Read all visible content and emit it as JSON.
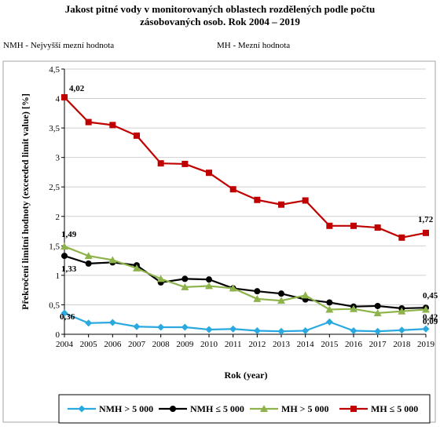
{
  "header": {
    "title_line1": "Jakost pitné vody v monitorovaných oblastech rozdělených podle počtu",
    "title_line2": "zásobovaných osob. Rok 2004 – 2019",
    "note_left": "NMH - Nejvyšší mezní hodnota",
    "note_right": "MH - Mezní hodnota"
  },
  "chart_data": {
    "type": "line",
    "xlabel": "Rok (year)",
    "ylabel": "Překročení limitní hodnoty (exceeded limit value) [%]",
    "x": [
      2004,
      2005,
      2006,
      2007,
      2008,
      2009,
      2010,
      2011,
      2012,
      2013,
      2014,
      2015,
      2016,
      2017,
      2018,
      2019
    ],
    "ylim": [
      0,
      4.5
    ],
    "yticks": [
      "0",
      "0,5",
      "1",
      "1,5",
      "2",
      "2,5",
      "3",
      "3,5",
      "4",
      "4,5"
    ],
    "grid": "horizontal",
    "legend_position": "bottom",
    "series": [
      {
        "name": "NMH > 5 000",
        "color": "#2aa9e0",
        "marker": "diamond",
        "values": [
          0.36,
          0.19,
          0.2,
          0.13,
          0.12,
          0.12,
          0.08,
          0.09,
          0.06,
          0.05,
          0.06,
          0.21,
          0.06,
          0.05,
          0.07,
          0.09
        ]
      },
      {
        "name": "NMH ≤ 5 000",
        "color": "#000000",
        "marker": "circle",
        "values": [
          1.33,
          1.2,
          1.22,
          1.17,
          0.88,
          0.94,
          0.93,
          0.78,
          0.73,
          0.69,
          0.59,
          0.54,
          0.47,
          0.48,
          0.44,
          0.45
        ]
      },
      {
        "name": "MH > 5 000",
        "color": "#8db34a",
        "marker": "triangle",
        "values": [
          1.49,
          1.33,
          1.26,
          1.12,
          0.94,
          0.8,
          0.82,
          0.78,
          0.6,
          0.57,
          0.66,
          0.42,
          0.43,
          0.36,
          0.39,
          0.42
        ]
      },
      {
        "name": "MH ≤ 5 000",
        "color": "#c00000",
        "marker": "square",
        "values": [
          4.02,
          3.6,
          3.55,
          3.37,
          2.9,
          2.89,
          2.74,
          2.46,
          2.28,
          2.2,
          2.27,
          1.84,
          1.84,
          1.81,
          1.64,
          1.72
        ]
      }
    ],
    "data_labels": [
      {
        "text": "4,02",
        "series": 3,
        "index": 0
      },
      {
        "text": "1,49",
        "series": 2,
        "index": 0
      },
      {
        "text": "1,33",
        "series": 1,
        "index": 0
      },
      {
        "text": "0,36",
        "series": 0,
        "index": 0
      },
      {
        "text": "1,72",
        "series": 3,
        "index": 15
      },
      {
        "text": "0,45",
        "series": 1,
        "index": 15
      },
      {
        "text": "0,42",
        "series": 2,
        "index": 15
      },
      {
        "text": "0,09",
        "series": 0,
        "index": 15
      }
    ]
  }
}
